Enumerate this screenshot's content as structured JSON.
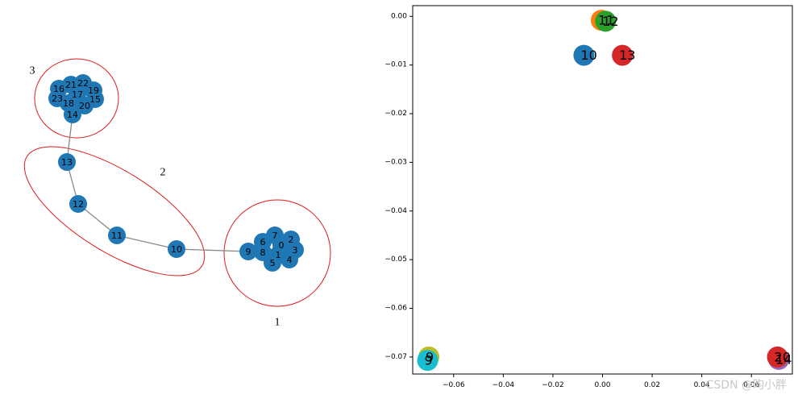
{
  "chart_data": [
    {
      "type": "network",
      "nodes": [
        "0",
        "1",
        "2",
        "3",
        "4",
        "5",
        "6",
        "7",
        "8",
        "9",
        "10",
        "11",
        "12",
        "13",
        "14",
        "15",
        "16",
        "17",
        "18",
        "19",
        "20",
        "21",
        "22",
        "23"
      ],
      "edges": [
        [
          "9",
          "10"
        ],
        [
          "10",
          "11"
        ],
        [
          "11",
          "12"
        ],
        [
          "12",
          "13"
        ],
        [
          "13",
          "14"
        ],
        [
          "8",
          "9"
        ],
        [
          "14",
          "18"
        ]
      ],
      "clusters": [
        {
          "label": "1",
          "members": [
            "0",
            "1",
            "2",
            "3",
            "4",
            "5",
            "6",
            "7",
            "8",
            "9"
          ]
        },
        {
          "label": "2",
          "members": [
            "10",
            "11",
            "12",
            "13"
          ]
        },
        {
          "label": "3",
          "members": [
            "14",
            "15",
            "16",
            "17",
            "18",
            "19",
            "20",
            "21",
            "22",
            "23"
          ]
        }
      ],
      "node_color": "#1f77b4",
      "edge_color": "#888888",
      "cluster_outline_color": "#dd1c1c"
    },
    {
      "type": "scatter",
      "xlim": [
        -0.0765,
        0.0765
      ],
      "ylim": [
        -0.0735,
        0.0022
      ],
      "xticks": [
        -0.06,
        -0.04,
        -0.02,
        0.0,
        0.02,
        0.04,
        0.06
      ],
      "xtick_labels": [
        "−0.06",
        "−0.04",
        "−0.02",
        "0.00",
        "0.02",
        "0.04",
        "0.06"
      ],
      "yticks": [
        0.0,
        -0.01,
        -0.02,
        -0.03,
        -0.04,
        -0.05,
        -0.06,
        -0.07
      ],
      "ytick_labels": [
        "0.00",
        "−0.01",
        "−0.02",
        "−0.03",
        "−0.04",
        "−0.05",
        "−0.06",
        "−0.07"
      ],
      "points": [
        {
          "label": "11",
          "x": -0.0005,
          "y": -0.0008,
          "color": "#ff7f0e"
        },
        {
          "label": "12",
          "x": 0.0012,
          "y": -0.001,
          "color": "#2ca02c"
        },
        {
          "label": "10",
          "x": -0.0075,
          "y": -0.008,
          "color": "#1f77b4"
        },
        {
          "label": "13",
          "x": 0.008,
          "y": -0.008,
          "color": "#d62728"
        },
        {
          "label": "9",
          "x": -0.07,
          "y": -0.07,
          "color": "#bcbd22"
        },
        {
          "label": "9",
          "x": -0.0705,
          "y": -0.0707,
          "color": "#17becf"
        },
        {
          "label": "14",
          "x": 0.071,
          "y": -0.0705,
          "color": "#9467bd"
        },
        {
          "label": "20",
          "x": 0.0705,
          "y": -0.07,
          "color": "#d62728"
        }
      ]
    }
  ],
  "watermark": "CSDN @昀小胖"
}
